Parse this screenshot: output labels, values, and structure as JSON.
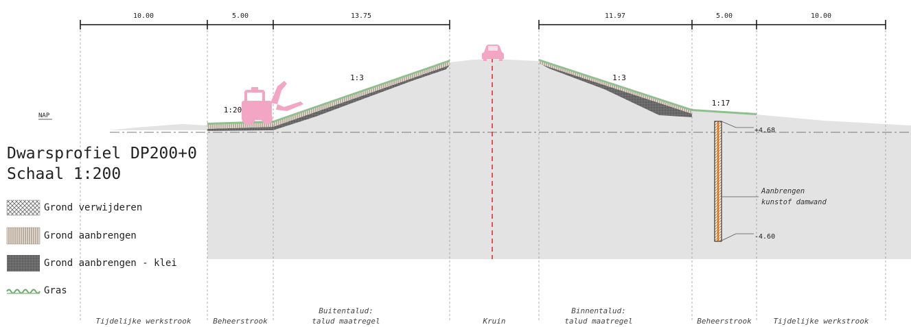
{
  "title": {
    "line1": "Dwarsprofiel DP200+0",
    "line2": "Schaal 1:200"
  },
  "nap_label": "NAP",
  "dimensions": [
    "10.00",
    "5.00",
    "13.75",
    "11.97",
    "5.00",
    "10.00"
  ],
  "slopes": [
    "1:20",
    "1:3",
    "1:3",
    "1:17"
  ],
  "zones": [
    {
      "line1": "",
      "line2": "Tijdelijke werkstrook"
    },
    {
      "line1": "",
      "line2": "Beheerstrook"
    },
    {
      "line1": "Buitentalud:",
      "line2": "talud maatregel"
    },
    {
      "line1": "",
      "line2": "Kruin"
    },
    {
      "line1": "Binnentalud:",
      "line2": "talud maatregel"
    },
    {
      "line1": "",
      "line2": "Beheerstrook"
    },
    {
      "line1": "",
      "line2": "Tijdelijke werkstrook"
    }
  ],
  "legend": [
    {
      "label": "Grond verwijderen",
      "pattern": "crosshatch"
    },
    {
      "label": "Grond aanbrengen",
      "pattern": "vertical-stripes"
    },
    {
      "label": "Grond aanbrengen - klei",
      "pattern": "dark-gray"
    },
    {
      "label": "Gras",
      "pattern": "green-wave"
    }
  ],
  "sheet_pile": {
    "top_level": "+4.68",
    "bottom_level": "-4.60",
    "label_line1": "Aanbrengen",
    "label_line2": "kunstof damwand"
  },
  "icons": [
    "excavator-icon",
    "car-icon"
  ],
  "colors": {
    "ground": "#e3e3e3",
    "grass": "#8fbf8f",
    "clay": "#6e6e6e",
    "axis": "#e03030",
    "vehicle": "#f2a6c4",
    "sheet_pile": "#e07a20"
  }
}
